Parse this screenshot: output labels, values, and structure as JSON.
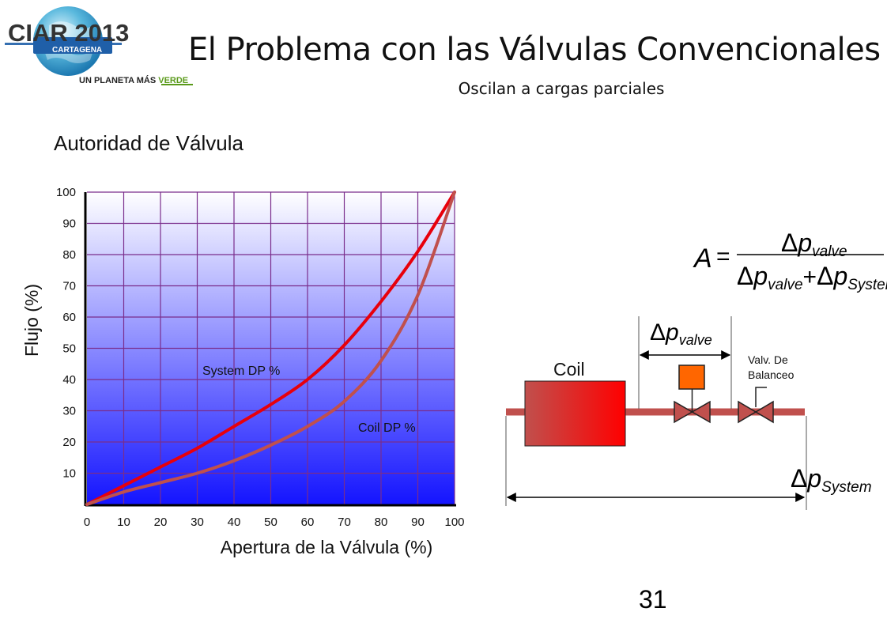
{
  "header": {
    "logo": {
      "text": "CIAR 2013",
      "city": "CARTAGENA",
      "tagline_main": "UN PLANETA MÁS ",
      "tagline_accent": "VERDE"
    },
    "title": "El Problema con las Válvulas Convencionales",
    "subtitle": "Oscilan a cargas parciales"
  },
  "section_title": "Autoridad de Válvula",
  "chart_data": {
    "type": "line",
    "xlabel": "Apertura de la Válvula (%)",
    "ylabel": "Flujo (%)",
    "xlim": [
      0,
      100
    ],
    "ylim": [
      0,
      100
    ],
    "x_ticks": [
      0,
      10,
      20,
      30,
      40,
      50,
      60,
      70,
      80,
      90,
      100
    ],
    "y_ticks": [
      10,
      20,
      30,
      40,
      50,
      60,
      70,
      80,
      90,
      100
    ],
    "grid": true,
    "series": [
      {
        "name": "System DP %",
        "color": "#e8000b",
        "x": [
          0,
          10,
          20,
          30,
          40,
          50,
          60,
          70,
          80,
          90,
          100
        ],
        "y": [
          0,
          6,
          12,
          18,
          25,
          32,
          40,
          51,
          65,
          81,
          100
        ]
      },
      {
        "name": "Coil DP %",
        "color": "#c0504d",
        "x": [
          0,
          10,
          20,
          30,
          40,
          50,
          60,
          70,
          80,
          90,
          100
        ],
        "y": [
          0,
          4,
          7,
          10,
          14,
          19,
          25,
          33,
          46,
          67,
          100
        ]
      }
    ]
  },
  "diagram": {
    "formula": {
      "lhs": "A",
      "eq": "=",
      "delta": "Δ",
      "p": "p",
      "valve_sub": "valve",
      "system_sub": "System",
      "plus": "+"
    },
    "coil_label": "Coil",
    "balance_valve_label": [
      "Valv. De",
      "Balanceo"
    ],
    "colors": {
      "pipe": "#c0504d",
      "coil_start": "#c0504d",
      "coil_end": "#ff0000",
      "actuator": "#ff6600"
    }
  },
  "page_number": "31"
}
